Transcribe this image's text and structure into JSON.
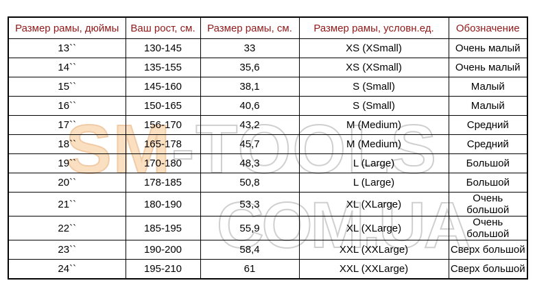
{
  "colors": {
    "header_text": "#911818",
    "watermark_fill": "#fadfc1",
    "watermark_fill_edge": "#f0cba6",
    "watermark_outline": "#cfcfcf",
    "grid": "#000000",
    "background": "#ffffff"
  },
  "watermark": {
    "line1_filled": "SM",
    "line1_outlined": "-TOOLS",
    "line2": "COM.UA"
  },
  "table": {
    "columns": [
      "Размер рамы, дюймы",
      "Ваш рост, см.",
      "Размер рамы, см.",
      "Размер рамы, условн.ед.",
      "Обозначение"
    ],
    "rows": [
      [
        "13``",
        "130-145",
        "33",
        "XS (XSmall)",
        "Очень малый"
      ],
      [
        "14``",
        "135-155",
        "35,6",
        "XS (XSmall)",
        "Очень малый"
      ],
      [
        "15``",
        "145-160",
        "38,1",
        "S (Small)",
        "Малый"
      ],
      [
        "16``",
        "150-165",
        "40,6",
        "S (Small)",
        "Малый"
      ],
      [
        "17``",
        "156-170",
        "43,2",
        "M (Medium)",
        "Средний"
      ],
      [
        "18``",
        "165-178",
        "45,7",
        "M (Medium)",
        "Средний"
      ],
      [
        "19``",
        "170-180",
        "48,3",
        "L (Large)",
        "Большой"
      ],
      [
        "20``",
        "178-185",
        "50,8",
        "L (Large)",
        "Большой"
      ],
      [
        "21``",
        "180-190",
        "53,3",
        "XL (XLarge)",
        "Очень большой"
      ],
      [
        "22``",
        "185-195",
        "55,9",
        "XL (XLarge)",
        "Очень большой"
      ],
      [
        "23``",
        "190-200",
        "58,4",
        "XXL (XXLarge)",
        "Сверх большой"
      ],
      [
        "24``",
        "195-210",
        "61",
        "XXL (XXLarge)",
        "Сверх большой"
      ]
    ]
  }
}
